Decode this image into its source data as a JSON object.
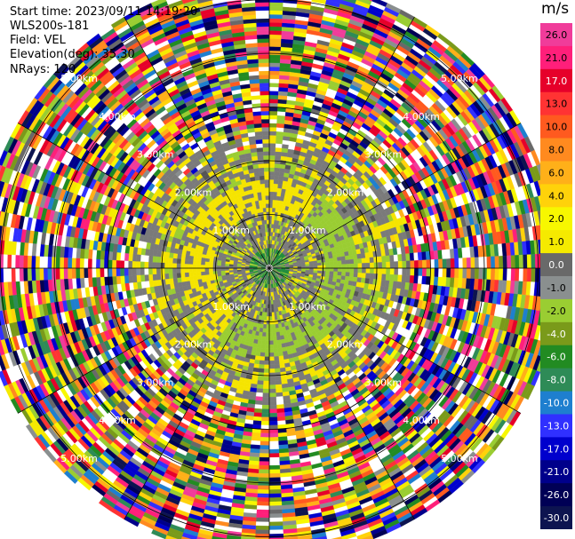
{
  "info": {
    "start_time": "Start time: 2023/09/11 14:19:20",
    "instrument": "WLS200s-181",
    "field": "Field: VEL",
    "elevation": "Elevation(deg): 35.30",
    "nrays": "NRays: 120"
  },
  "chart_data": {
    "type": "heatmap",
    "projection": "polar (PPI)",
    "title": "",
    "n_rays": 120,
    "range_rings": [
      {
        "label": "1.00km",
        "r": 1
      },
      {
        "label": "2.00km",
        "r": 2
      },
      {
        "label": "3.00km",
        "r": 3
      },
      {
        "label": "4.00km",
        "r": 4
      },
      {
        "label": "5.00km",
        "r": 5
      }
    ],
    "max_range_km": 5.4,
    "spokes_deg": [
      0,
      30,
      60,
      90,
      120,
      150,
      180,
      210,
      240,
      270,
      300,
      330
    ],
    "colorbar": {
      "unit": "m/s",
      "ticks": [
        "26.0",
        "21.0",
        "17.0",
        "13.0",
        "10.0",
        "8.0",
        "6.0",
        "4.0",
        "2.0",
        "1.0",
        "0.0",
        "-1.0",
        "-2.0",
        "-4.0",
        "-6.0",
        "-8.0",
        "-10.0",
        "-13.0",
        "-17.0",
        "-21.0",
        "-26.0",
        "-30.0"
      ],
      "colors": [
        "#f03c9a",
        "#ff1f7a",
        "#e6002a",
        "#ff3333",
        "#ff5a1f",
        "#ff8a1f",
        "#ffb019",
        "#ffd20a",
        "#f7f700",
        "#f5ea00",
        "#696969",
        "#8a8f8f",
        "#9acd32",
        "#7a9a1a",
        "#228b22",
        "#2e8b57",
        "#1e7fcf",
        "#3030ff",
        "#0000cd",
        "#00008b",
        "#000055",
        "#0d1450"
      ],
      "min": -30,
      "max": 30
    },
    "colors": {
      "near_zero_gray": "#7a7a7a",
      "near_zero_dark": "#555555",
      "weak_green": "#9acd32",
      "weak_yellow": "#f5e400",
      "center_green": "#1f8b3a",
      "ring_line": "#000000"
    }
  }
}
